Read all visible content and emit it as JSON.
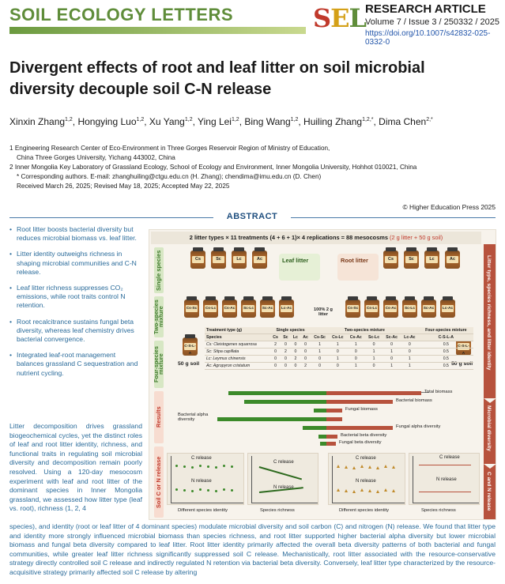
{
  "header": {
    "journal_name": "SOIL ECOLOGY LETTERS",
    "logo": {
      "s": "S",
      "e": "E",
      "l": "L"
    },
    "article_type": "RESEARCH ARTICLE",
    "volume_line": "Volume 7 / Issue 3 / 250332 / 2025",
    "doi": "https://doi.org/10.1007/s42832-025-0332-0"
  },
  "title": "Divergent effects of root and leaf litter on soil microbial diversity decouple soil C-N release",
  "authors": [
    {
      "name": "Xinxin Zhang",
      "sup": "1,2"
    },
    {
      "name": "Hongying Luo",
      "sup": "1,2"
    },
    {
      "name": "Xu Yang",
      "sup": "1,2"
    },
    {
      "name": "Ying Lei",
      "sup": "1,2"
    },
    {
      "name": "Bing Wang",
      "sup": "1,2"
    },
    {
      "name": "Huiling Zhang",
      "sup": "1,2,*"
    },
    {
      "name": "Dima Chen",
      "sup": "2,*"
    }
  ],
  "affiliations": {
    "a1": "1 Engineering Research Center of Eco-Environment in Three Gorges Reservoir Region of Ministry of Education,",
    "a1b": "China Three Gorges University, Yichang 443002, China",
    "a2": "2 Inner Mongolia Key Laboratory of Grassland Ecology, School of Ecology and Environment, Inner Mongolia University, Hohhot 010021, China",
    "corr": "* Corresponding authors. E-mail: zhanghuiling@ctgu.edu.cn (H. Zhang); chendima@imu.edu.cn (D. Chen)",
    "dates": "Received March 26, 2025; Revised May 18, 2025; Accepted May 22, 2025"
  },
  "copyright": "© Higher Education Press 2025",
  "abstract_heading": "ABSTRACT",
  "bullets": [
    "Root litter boosts bacterial diversity but reduces microbial biomass vs. leaf litter.",
    "Litter identity outweighs richness in shaping microbial communities and C-N release.",
    "Leaf litter richness suppresses CO₂ emissions, while root traits control N retention.",
    "Root recalcitrance sustains fungal beta diversity, whereas leaf chemistry drives bacterial convergence.",
    "Integrated leaf-root management balances grassland C sequestration and nutrient cycling."
  ],
  "body_left": "Litter decomposition drives grassland biogeochemical cycles, yet the distinct roles of leaf and root litter identity, richness, and functional traits in regulating soil microbial diversity and decomposition remain poorly resolved. Using a 120-day mesocosm experiment with leaf and root litter of the dominant species in Inner Mongolia grassland, we assessed how litter type (leaf vs. root), richness (1, 2, 4",
  "body_full": "species), and identity (root or leaf litter of 4 dominant species) modulate microbial diversity and soil carbon (C) and nitrogen (N) release. We found that litter type and identity more strongly influenced microbial biomass than species richness, and root litter supported higher bacterial alpha diversity but lower microbial biomass and fungal beta diversity compared to leaf litter. Root litter identity primarily affected the overall beta diversity patterns of both bacterial and fungal communities, while greater leaf litter richness significantly suppressed soil C release. Mechanistically, root litter associated with the resource-conservative strategy directly controlled soil C release and indirectly regulated N retention via bacterial beta diversity. Conversely, leaf litter type characterized by the resource-acquisitive strategy primarily affected soil C release by altering",
  "graphical_abstract": {
    "top_banner": "2 litter types × 11 treatments (4 + 6 + 1)× 4 replications = 88 mesocosms",
    "top_banner_hl": "(2 g litter + 50 g soil)",
    "side_labels": {
      "single": "Single species",
      "two": "Two-species mixture",
      "four": "Four-species mixture",
      "results": "Results",
      "soil_cn": "Soil C or N release"
    },
    "right_arrow": {
      "a": "Litter type, species richness, and litter identity",
      "b": "Microbial diversity",
      "c": "C and N release"
    },
    "leaf_label": "Leaf litter",
    "root_label": "Root litter",
    "single_leaf_jars": [
      "Cs",
      "Sc",
      "Lc",
      "Ac"
    ],
    "single_root_jars": [
      "Cs",
      "Sc",
      "Lc",
      "Ac"
    ],
    "two_leaf_jars": [
      "Cs-Sc",
      "Cs-Lc",
      "Cs-Ac",
      "Sc-Lc",
      "Sc-Ac",
      "Lc-Ac"
    ],
    "two_root_jars": [
      "Cs-Sc",
      "Cs-Lc",
      "Cs-Ac",
      "Sc-Lc",
      "Sc-Ac",
      "Lc-Ac"
    ],
    "four_jar": "C-S-L-A",
    "litter_note": "100% 2 g litter",
    "soil_note": "50 g soil",
    "table": {
      "head1": [
        "Treatment type (g)",
        "Single species",
        "Two-species mixture",
        "Four-species mixture"
      ],
      "head2": [
        "Species",
        "Cs",
        "Sc",
        "Lc",
        "Ac",
        "Cs-Sc",
        "Cs-Lc",
        "Cs-Ac",
        "Sc-Lc",
        "Sc-Ac",
        "Lc-Ac",
        "C-S-L-A"
      ],
      "rows": [
        [
          "Cs: Cleistogenes squarrosa",
          "2",
          "0",
          "0",
          "0",
          "1",
          "1",
          "1",
          "0",
          "0",
          "0",
          "0.5"
        ],
        [
          "Sc: Stipa capillata",
          "0",
          "2",
          "0",
          "0",
          "1",
          "0",
          "0",
          "1",
          "1",
          "0",
          "0.5"
        ],
        [
          "Lc: Leymus chinensis",
          "0",
          "0",
          "2",
          "0",
          "0",
          "1",
          "0",
          "1",
          "0",
          "1",
          "0.5"
        ],
        [
          "Ac: Agropyron cristatum",
          "0",
          "0",
          "0",
          "2",
          "0",
          "0",
          "1",
          "0",
          "1",
          "1",
          "0.5"
        ]
      ]
    },
    "bar_labels": [
      "Total biomass",
      "Bacterial biomass",
      "Fungal biomass",
      "Bacterial alpha diversity",
      "Fungal alpha diversity",
      "Bacterial beta diversity",
      "Fungal beta diversity"
    ],
    "panels": {
      "c_release": "C release",
      "n_release": "N release",
      "identity": "Different species identity",
      "richness": "Species richness"
    }
  }
}
